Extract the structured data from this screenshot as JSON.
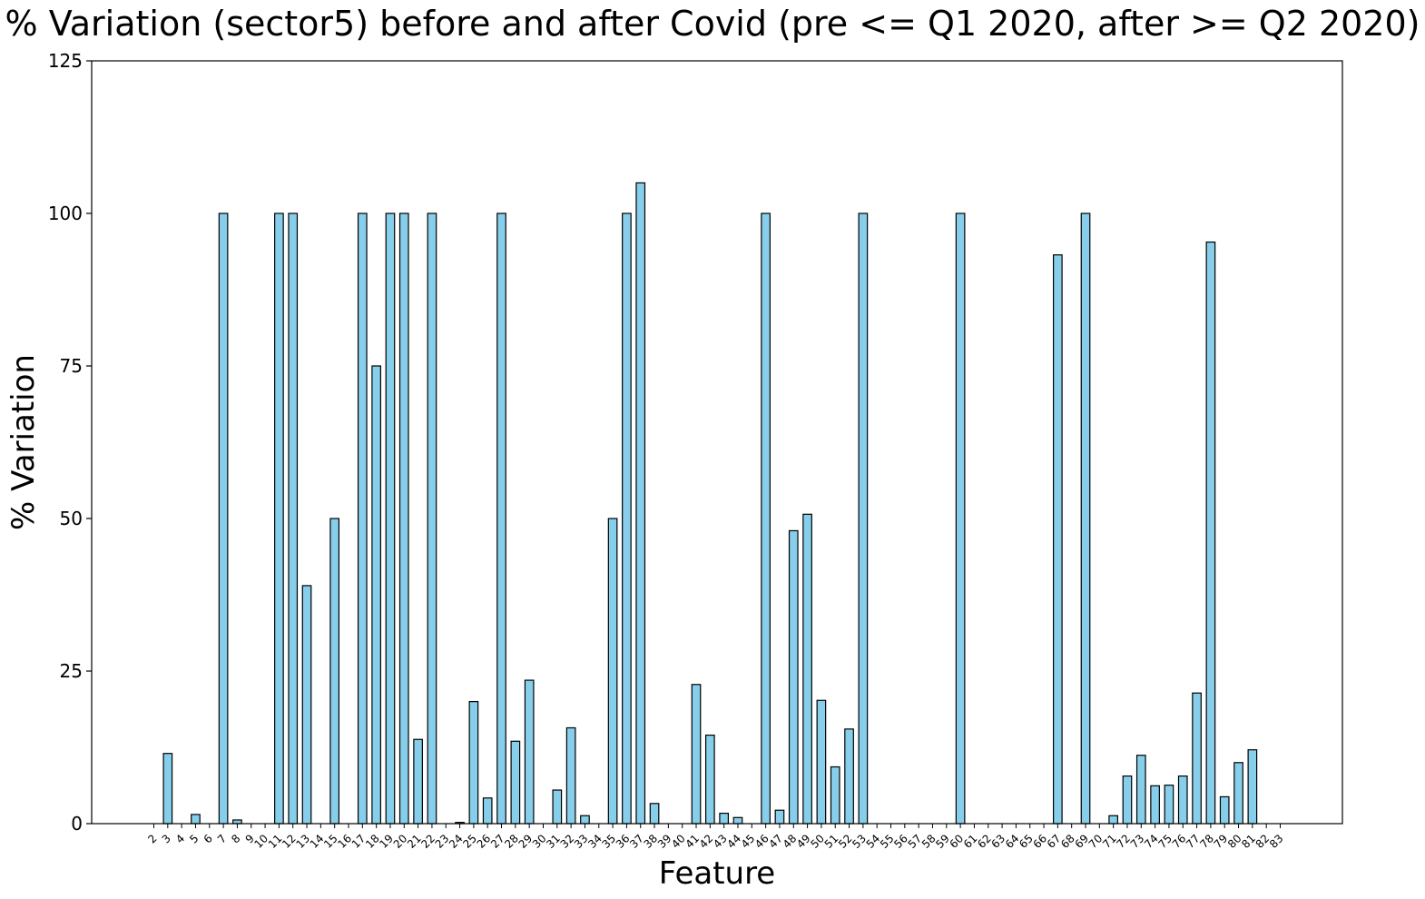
{
  "chart_data": {
    "type": "bar",
    "title": "% Variation (sector5) before and after Covid (pre <= Q1 2020, after >= Q2 2020)",
    "xlabel": "Feature",
    "ylabel": "% Variation",
    "ylim": [
      0,
      125
    ],
    "yticks": [
      0,
      25,
      50,
      75,
      100,
      125
    ],
    "grid": false,
    "bar_color": "#87ceeb",
    "edge_color": "#000000",
    "categories": [
      "2",
      "3",
      "4",
      "5",
      "6",
      "7",
      "8",
      "9",
      "10",
      "11",
      "12",
      "13",
      "14",
      "15",
      "16",
      "17",
      "18",
      "19",
      "20",
      "21",
      "22",
      "23",
      "24",
      "25",
      "26",
      "27",
      "28",
      "29",
      "30",
      "31",
      "32",
      "33",
      "34",
      "35",
      "36",
      "37",
      "38",
      "39",
      "40",
      "41",
      "42",
      "43",
      "44",
      "45",
      "46",
      "47",
      "48",
      "49",
      "50",
      "51",
      "52",
      "53",
      "54",
      "55",
      "56",
      "57",
      "58",
      "59",
      "60",
      "61",
      "62",
      "63",
      "64",
      "65",
      "66",
      "67",
      "68",
      "69",
      "70",
      "71",
      "72",
      "73",
      "74",
      "75",
      "76",
      "77",
      "78",
      "79",
      "80",
      "81",
      "82",
      "83"
    ],
    "values": [
      0,
      11.5,
      0,
      1.5,
      0,
      100,
      0.6,
      0,
      0,
      100,
      100,
      39,
      0,
      50,
      0,
      100,
      75,
      100,
      100,
      13.8,
      100,
      0,
      0.2,
      20,
      4.2,
      100,
      13.5,
      23.5,
      0,
      5.5,
      15.7,
      1.3,
      0,
      50,
      100,
      105,
      3.3,
      0,
      0,
      22.8,
      14.5,
      1.7,
      1,
      0,
      100,
      2.2,
      48,
      50.7,
      20.2,
      9.3,
      15.5,
      100,
      0,
      0,
      0,
      0,
      0,
      0,
      100,
      0,
      0,
      0,
      0,
      0,
      0,
      93.2,
      0,
      100,
      0,
      1.3,
      7.8,
      11.2,
      6.2,
      6.3,
      7.8,
      21.4,
      95.3,
      4.4,
      10,
      12.1,
      0,
      0
    ]
  }
}
